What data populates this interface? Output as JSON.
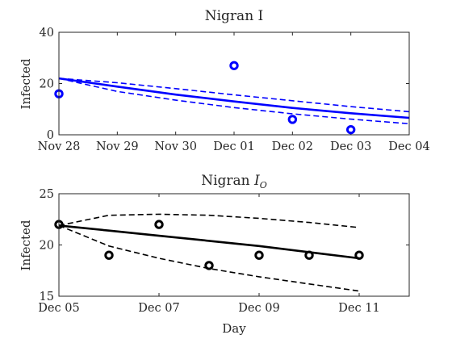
{
  "chart_data": [
    {
      "type": "scatter",
      "title": "Nigran I",
      "xlabel": "",
      "ylabel": "Infected",
      "xlim": [
        "2024-11-28",
        "2024-12-04"
      ],
      "ylim": [
        0,
        40
      ],
      "x_tick_labels": [
        "Nov 28",
        "Nov 29",
        "Nov 30",
        "Dec 01",
        "Dec 02",
        "Dec 03",
        "Dec 04"
      ],
      "y_ticks": [
        0,
        20,
        40
      ],
      "grid": false,
      "color": "#0000ff",
      "observed": {
        "x": [
          "2024-11-28",
          "2024-12-01",
          "2024-12-02",
          "2024-12-03"
        ],
        "y": [
          16,
          27,
          6,
          2
        ]
      },
      "fit": {
        "x": [
          "2024-11-28",
          "2024-11-29",
          "2024-11-30",
          "2024-12-01",
          "2024-12-02",
          "2024-12-03",
          "2024-12-04"
        ],
        "y": [
          22,
          18.8,
          15.7,
          13.0,
          10.5,
          8.4,
          6.6
        ]
      },
      "upper": {
        "x": [
          "2024-11-28",
          "2024-11-29",
          "2024-11-30",
          "2024-12-01",
          "2024-12-02",
          "2024-12-03",
          "2024-12-04"
        ],
        "y": [
          22,
          20.3,
          18.0,
          15.6,
          13.3,
          11.0,
          9.0
        ]
      },
      "lower": {
        "x": [
          "2024-11-28",
          "2024-11-29",
          "2024-11-30",
          "2024-12-01",
          "2024-12-02",
          "2024-12-03",
          "2024-12-04"
        ],
        "y": [
          22,
          16.9,
          13.5,
          10.6,
          8.2,
          6.1,
          4.3
        ]
      }
    },
    {
      "type": "scatter",
      "title": "Nigran ",
      "title_symbol": "I",
      "title_subscript": "O",
      "xlabel": "Day",
      "ylabel": "Infected",
      "xlim": [
        "2024-12-05",
        "2024-12-12"
      ],
      "ylim": [
        15,
        25
      ],
      "x_ticks": [
        "2024-12-05",
        "2024-12-07",
        "2024-12-09",
        "2024-12-11"
      ],
      "x_tick_labels": [
        "Dec 05",
        "Dec 07",
        "Dec 09",
        "Dec 11"
      ],
      "y_ticks": [
        15,
        20,
        25
      ],
      "grid": false,
      "color": "#000000",
      "observed": {
        "x": [
          "2024-12-05",
          "2024-12-06",
          "2024-12-07",
          "2024-12-08",
          "2024-12-09",
          "2024-12-10",
          "2024-12-11"
        ],
        "y": [
          22,
          19,
          22,
          18,
          19,
          19,
          19
        ]
      },
      "fit": {
        "x": [
          "2024-12-05",
          "2024-12-06",
          "2024-12-07",
          "2024-12-08",
          "2024-12-09",
          "2024-12-10",
          "2024-12-11"
        ],
        "y": [
          21.9,
          21.4,
          20.9,
          20.4,
          19.9,
          19.3,
          18.7
        ]
      },
      "upper": {
        "x": [
          "2024-12-05",
          "2024-12-06",
          "2024-12-07",
          "2024-12-08",
          "2024-12-09",
          "2024-12-10",
          "2024-12-11"
        ],
        "y": [
          21.9,
          22.9,
          23.0,
          22.9,
          22.6,
          22.2,
          21.7
        ]
      },
      "lower": {
        "x": [
          "2024-12-05",
          "2024-12-06",
          "2024-12-07",
          "2024-12-08",
          "2024-12-09",
          "2024-12-10",
          "2024-12-11"
        ],
        "y": [
          21.9,
          19.9,
          18.7,
          17.7,
          16.9,
          16.2,
          15.5
        ]
      }
    }
  ]
}
